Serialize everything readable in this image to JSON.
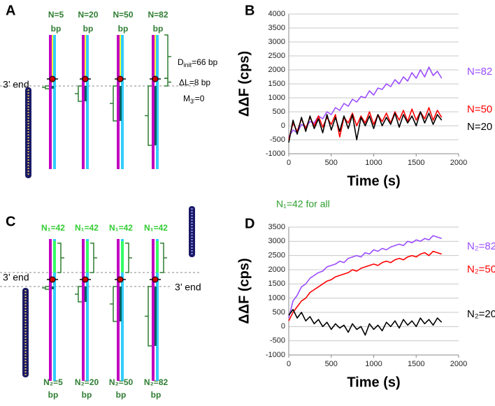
{
  "panel_a": {
    "label": "A",
    "strand_labels": [
      {
        "n": "N=5",
        "unit": "bp"
      },
      {
        "n": "N=20",
        "unit": "bp"
      },
      {
        "n": "N=50",
        "unit": "bp"
      },
      {
        "n": "N=82",
        "unit": "bp"
      }
    ],
    "end_label": "3’ end",
    "d_init": [
      "D",
      "init",
      "=66 bp"
    ],
    "delta_l": "ΔL=8 bp",
    "m3": [
      "M",
      "3'",
      "=0"
    ]
  },
  "panel_c": {
    "label": "C",
    "top_labels": [
      "N₁=42",
      "N₁=42",
      "N₁=42",
      "N₁=42"
    ],
    "bottom_labels": [
      {
        "n": "N₂=5",
        "unit": "bp"
      },
      {
        "n": "N₂=20",
        "unit": "bp"
      },
      {
        "n": "N₂=50",
        "unit": "bp"
      },
      {
        "n": "N₂=82",
        "unit": "bp"
      }
    ],
    "end_label_left": "3’ end",
    "end_label_right": "3’ end"
  },
  "chart_data": [
    {
      "type": "line",
      "panel_label": "B",
      "xlabel": "Time (s)",
      "ylabel": "ΔΔF (cps)",
      "x": [
        0,
        50,
        100,
        150,
        200,
        250,
        300,
        350,
        400,
        450,
        500,
        550,
        600,
        650,
        700,
        750,
        800,
        850,
        900,
        950,
        1000,
        1050,
        1100,
        1150,
        1200,
        1250,
        1300,
        1350,
        1400,
        1450,
        1500,
        1550,
        1600,
        1650,
        1700,
        1750,
        1800
      ],
      "series": [
        {
          "name": "N=82",
          "color": "#9b4dff",
          "values": [
            -400,
            -150,
            -250,
            50,
            -50,
            150,
            100,
            350,
            250,
            500,
            400,
            650,
            550,
            800,
            700,
            950,
            850,
            1050,
            1000,
            1250,
            1100,
            1350,
            1300,
            1500,
            1400,
            1650,
            1500,
            1750,
            1600,
            1900,
            1700,
            2000,
            1750,
            2100,
            1800,
            1950,
            1700
          ]
        },
        {
          "name": "N=50",
          "color": "#ff0000",
          "values": [
            -500,
            100,
            -200,
            250,
            -100,
            300,
            0,
            350,
            -50,
            300,
            50,
            400,
            -400,
            300,
            100,
            450,
            0,
            350,
            100,
            500,
            50,
            400,
            150,
            450,
            100,
            500,
            200,
            550,
            150,
            600,
            200,
            500,
            250,
            650,
            200,
            550,
            300
          ]
        },
        {
          "name": "N=20",
          "color": "#000000",
          "values": [
            -600,
            200,
            -300,
            300,
            -200,
            350,
            -100,
            250,
            -250,
            400,
            -150,
            300,
            -200,
            350,
            -100,
            400,
            -500,
            300,
            0,
            350,
            -100,
            400,
            0,
            300,
            50,
            450,
            -50,
            400,
            100,
            350,
            0,
            500,
            100,
            450,
            50,
            400,
            200
          ]
        }
      ],
      "xlim": [
        0,
        2000
      ],
      "xticks": [
        0,
        500,
        1000,
        1500,
        2000
      ],
      "ylim": [
        -1000,
        4000
      ],
      "yticks": [
        -1000,
        -500,
        0,
        500,
        1000,
        1500,
        2000,
        2500,
        3000,
        3500,
        4000
      ],
      "grid": true
    },
    {
      "type": "line",
      "panel_label": "D",
      "xlabel": "Time (s)",
      "ylabel": "ΔΔF (cps)",
      "annotation": "N₁=42 for all",
      "x": [
        0,
        50,
        100,
        150,
        200,
        250,
        300,
        350,
        400,
        450,
        500,
        550,
        600,
        650,
        700,
        750,
        800,
        850,
        900,
        950,
        1000,
        1050,
        1100,
        1150,
        1200,
        1250,
        1300,
        1350,
        1400,
        1450,
        1500,
        1550,
        1600,
        1650,
        1700,
        1750,
        1800
      ],
      "series": [
        {
          "name": "N₂=82",
          "color": "#9b4dff",
          "values": [
            300,
            900,
            1100,
            1400,
            1500,
            1700,
            1800,
            1900,
            1950,
            2100,
            2150,
            2200,
            2300,
            2250,
            2400,
            2450,
            2500,
            2450,
            2600,
            2550,
            2700,
            2650,
            2750,
            2700,
            2800,
            2850,
            2900,
            2850,
            3000,
            2950,
            3050,
            3000,
            3100,
            3050,
            3200,
            3150,
            3100
          ]
        },
        {
          "name": "N₂=50",
          "color": "#ff0000",
          "values": [
            200,
            500,
            700,
            900,
            1000,
            1200,
            1300,
            1400,
            1500,
            1600,
            1650,
            1750,
            1800,
            1850,
            1900,
            2000,
            1950,
            2050,
            2100,
            2150,
            2200,
            2150,
            2250,
            2300,
            2250,
            2350,
            2400,
            2350,
            2450,
            2500,
            2450,
            2550,
            2600,
            2500,
            2650,
            2600,
            2550
          ]
        },
        {
          "name": "N₂=20",
          "color": "#000000",
          "values": [
            400,
            600,
            300,
            500,
            200,
            350,
            100,
            250,
            0,
            150,
            -100,
            100,
            -50,
            50,
            -200,
            100,
            -100,
            0,
            -300,
            100,
            -100,
            50,
            -150,
            150,
            0,
            200,
            -50,
            250,
            50,
            200,
            0,
            300,
            100,
            250,
            50,
            300,
            150
          ]
        }
      ],
      "xlim": [
        0,
        2000
      ],
      "xticks": [
        0,
        500,
        1000,
        1500,
        2000
      ],
      "ylim": [
        -1000,
        3500
      ],
      "yticks": [
        -1000,
        -500,
        0,
        500,
        1000,
        1500,
        2000,
        2500,
        3000,
        3500
      ],
      "grid": true
    }
  ]
}
